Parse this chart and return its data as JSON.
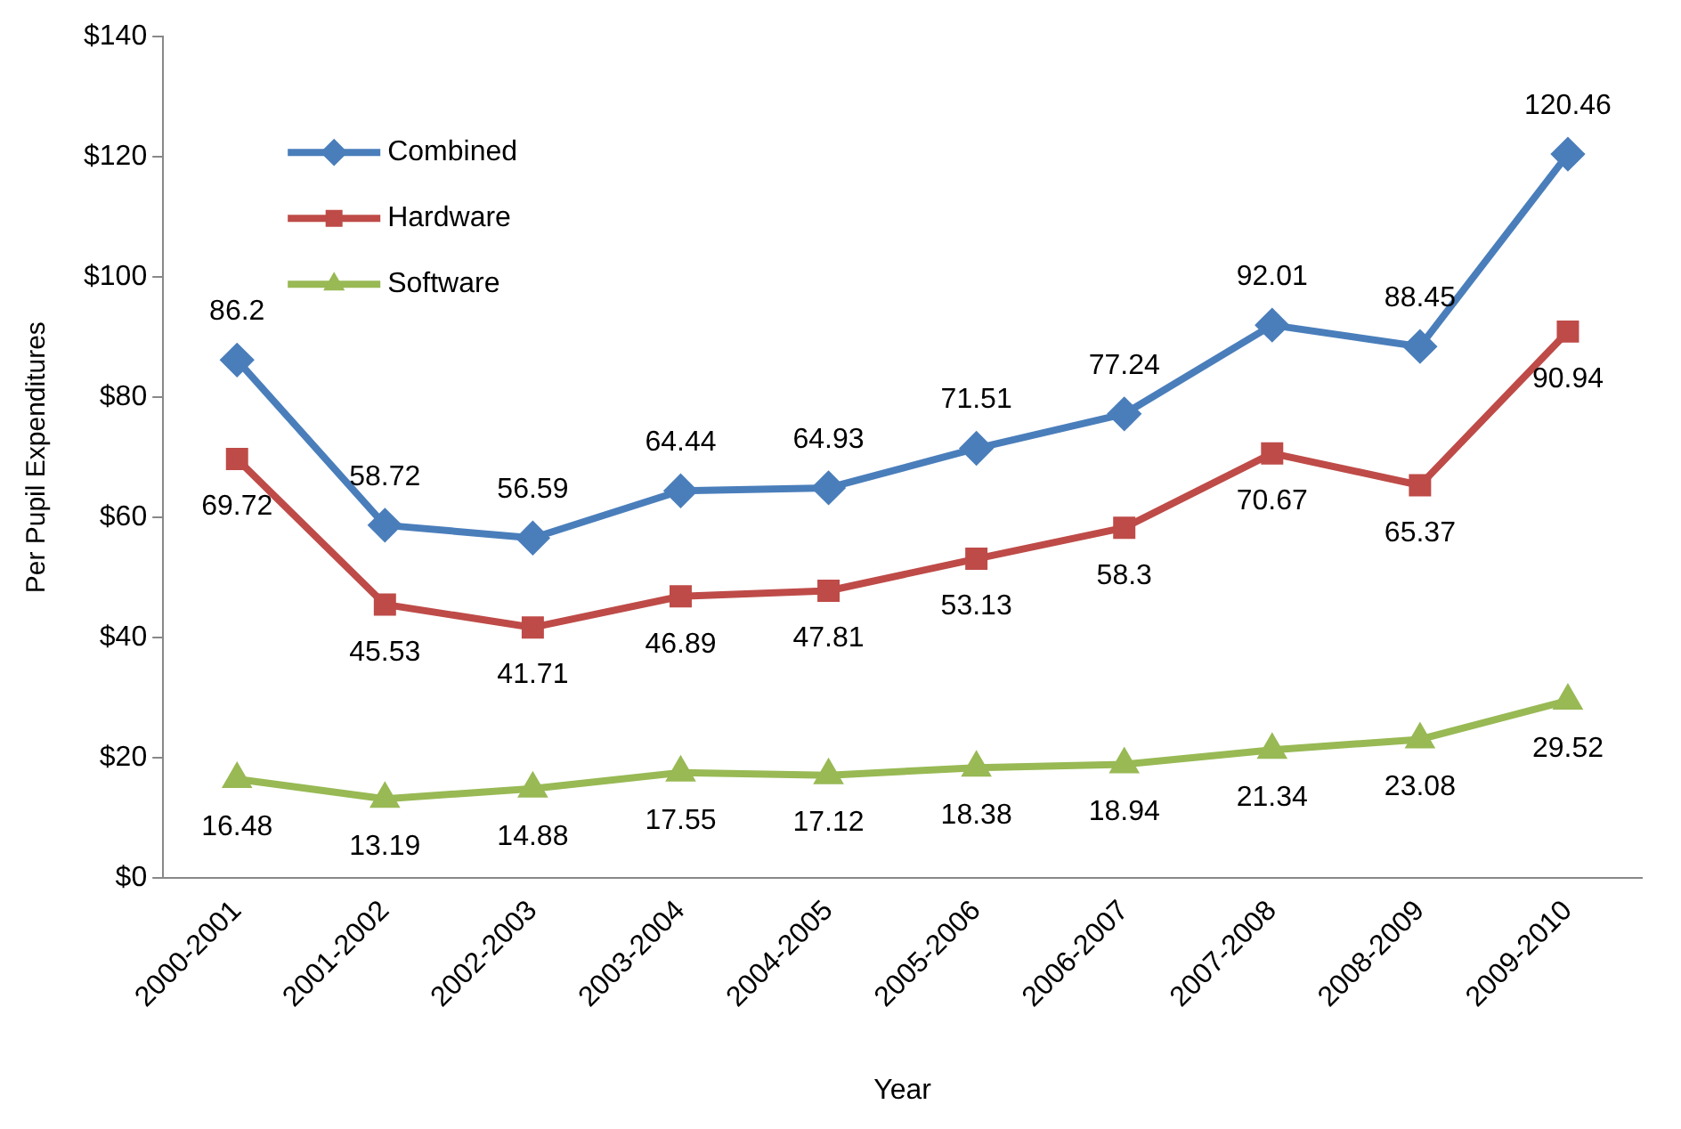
{
  "chart_data": {
    "type": "line",
    "xlabel": "Year",
    "ylabel": "Per Pupil Expenditures",
    "categories": [
      "2000-2001",
      "2001-2002",
      "2002-2003",
      "2003-2004",
      "2004-2005",
      "2005-2006",
      "2006-2007",
      "2007-2008",
      "2008-2009",
      "2009-2010"
    ],
    "series": [
      {
        "name": "Combined",
        "color": "#4a7ebb",
        "marker": "diamond",
        "values": [
          86.2,
          58.72,
          56.59,
          64.44,
          64.93,
          71.51,
          77.24,
          92.01,
          88.45,
          120.46
        ]
      },
      {
        "name": "Hardware",
        "color": "#be4b48",
        "marker": "square",
        "values": [
          69.72,
          45.53,
          41.71,
          46.89,
          47.81,
          53.13,
          58.3,
          70.67,
          65.37,
          90.94
        ]
      },
      {
        "name": "Software",
        "color": "#98b954",
        "marker": "triangle",
        "values": [
          16.48,
          13.19,
          14.88,
          17.55,
          17.12,
          18.38,
          18.94,
          21.34,
          23.08,
          29.52
        ]
      }
    ],
    "ylim": [
      0,
      140
    ],
    "yticks": [
      {
        "value": 0,
        "label": "$0"
      },
      {
        "value": 20,
        "label": "$20"
      },
      {
        "value": 40,
        "label": "$40"
      },
      {
        "value": 60,
        "label": "$60"
      },
      {
        "value": 80,
        "label": "$80"
      },
      {
        "value": 100,
        "label": "$100"
      },
      {
        "value": 120,
        "label": "$120"
      },
      {
        "value": 140,
        "label": "$140"
      }
    ],
    "grid": false,
    "legend": "top left",
    "data_labels": true,
    "line_style": "solid"
  }
}
